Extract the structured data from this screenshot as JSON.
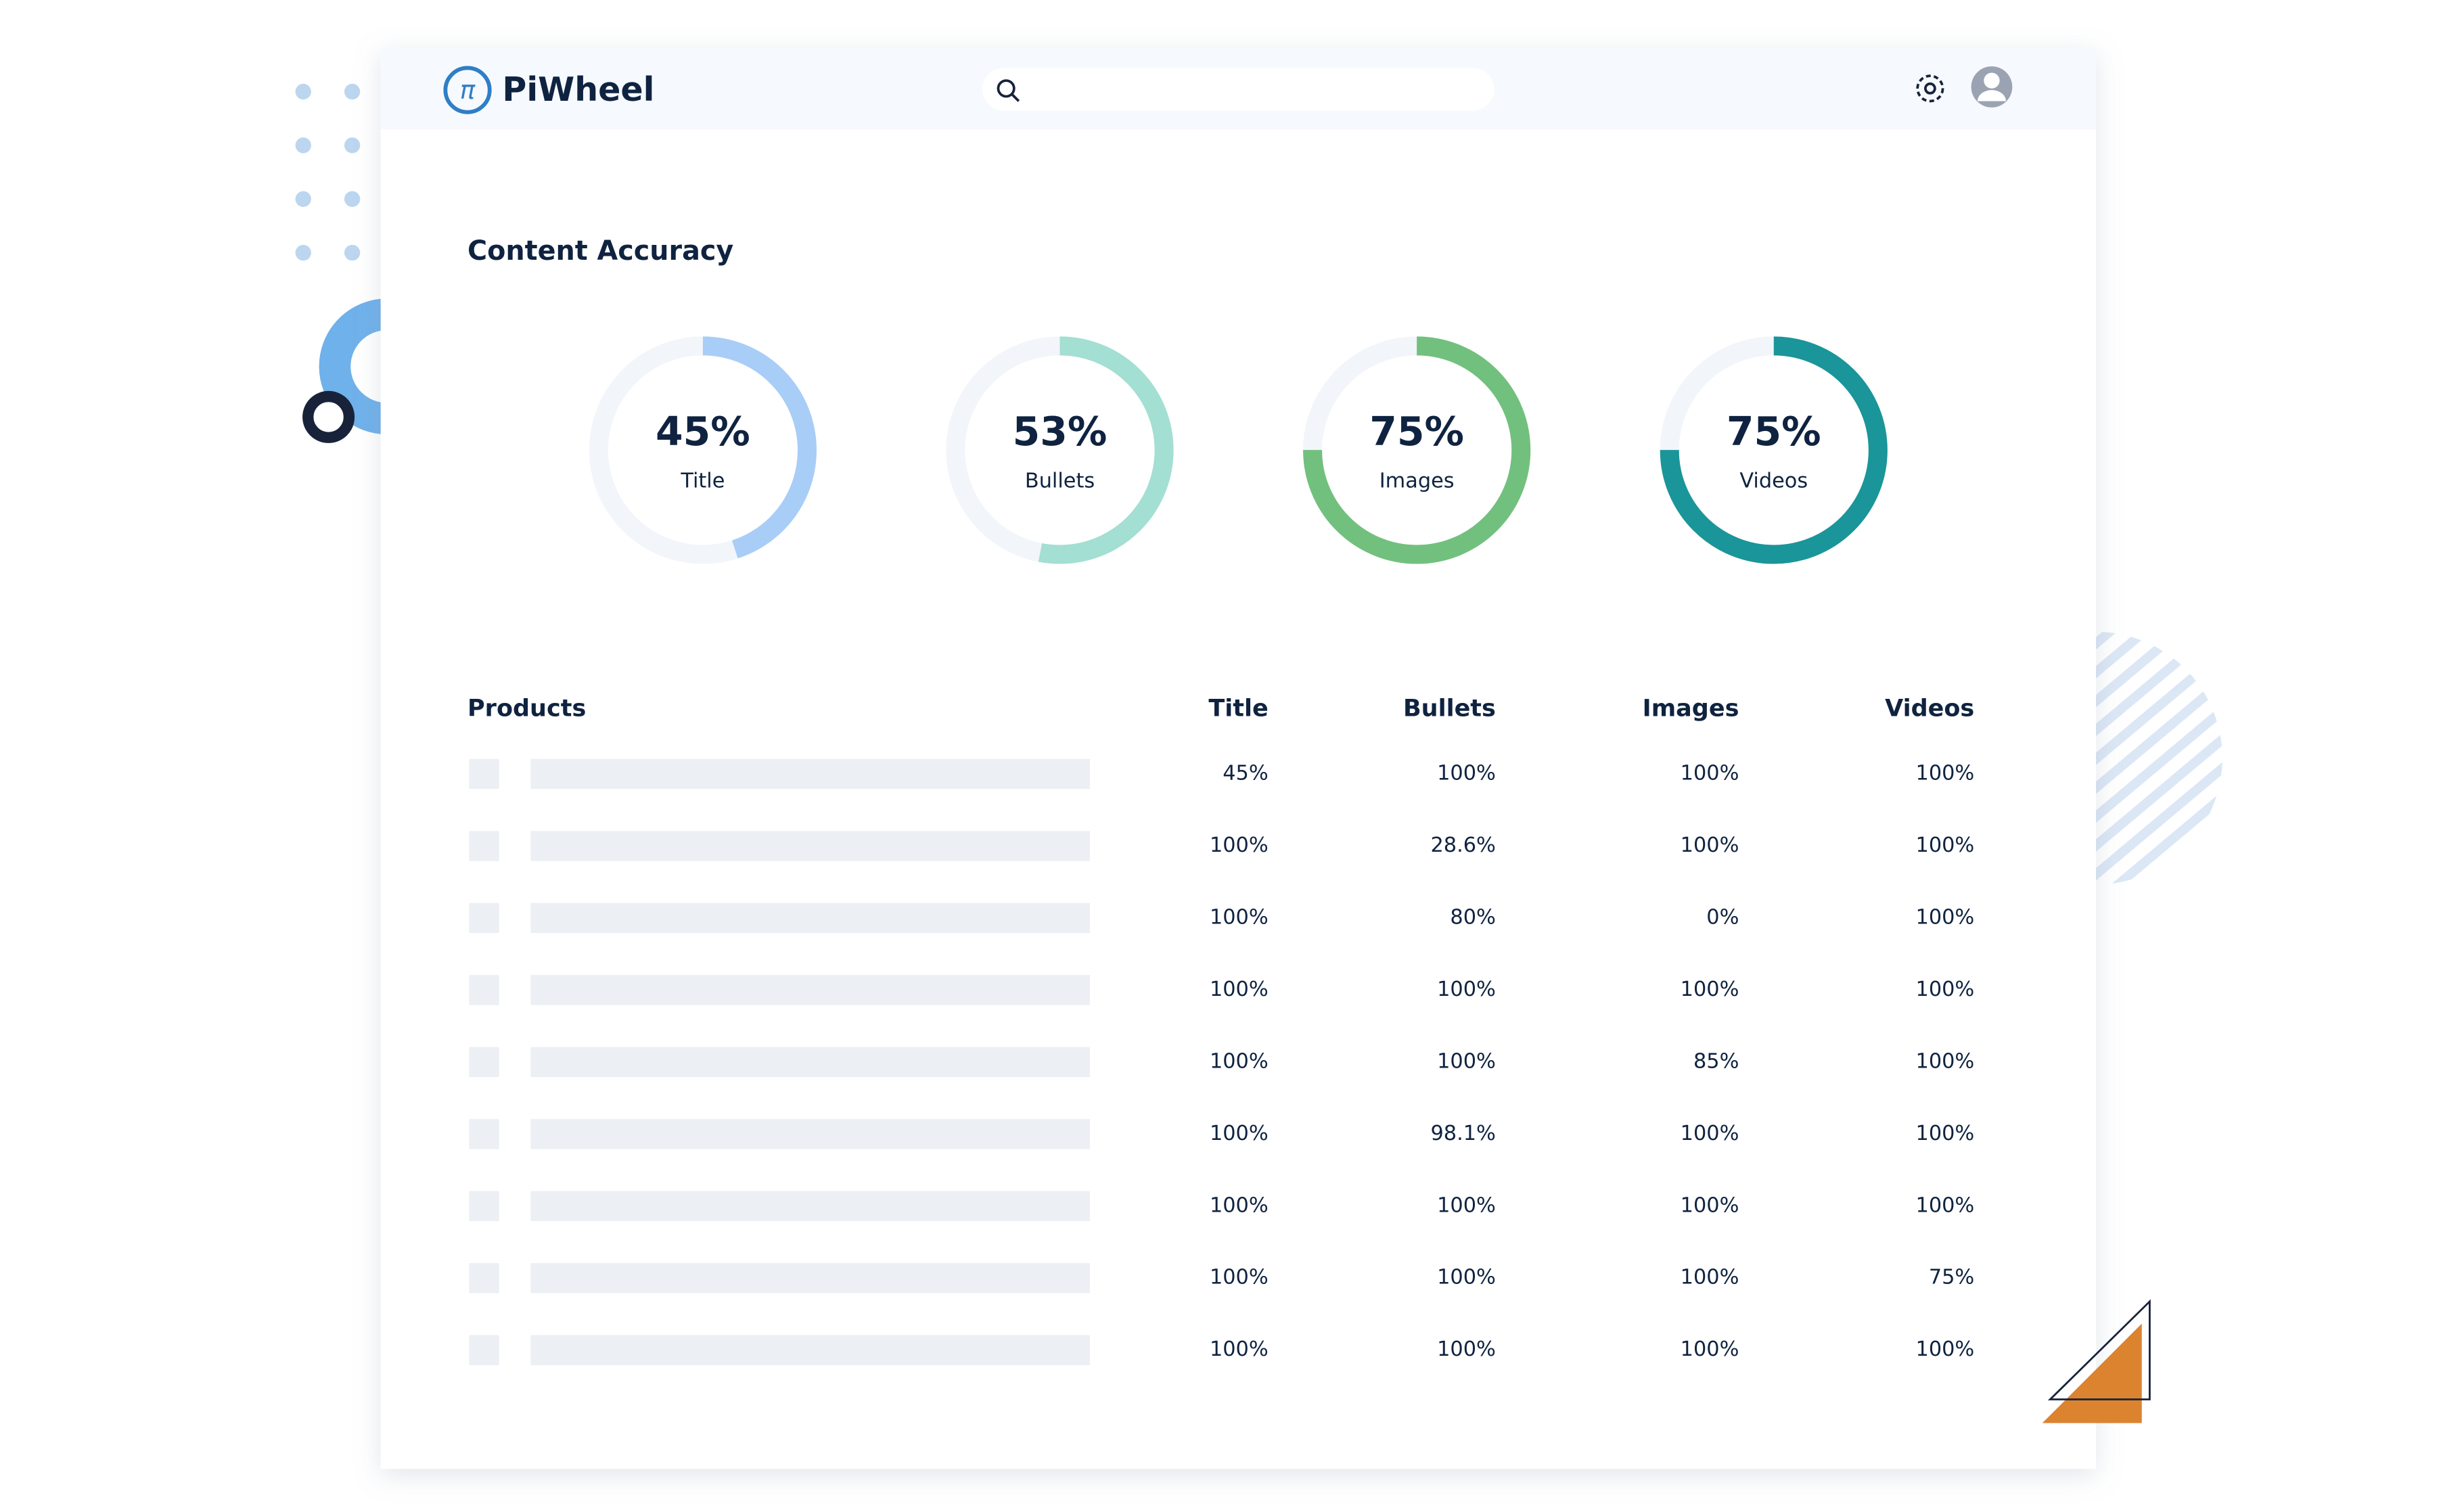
{
  "header": {
    "brand": "PiWheel"
  },
  "section_title": "Content Accuracy",
  "donuts": [
    {
      "value": 45,
      "label": "45%",
      "name": "Title",
      "color": "#a8cdf7"
    },
    {
      "value": 53,
      "label": "53%",
      "name": "Bullets",
      "color": "#a3dfd2"
    },
    {
      "value": 75,
      "label": "75%",
      "name": "Images",
      "color": "#72c07e"
    },
    {
      "value": 75,
      "label": "75%",
      "name": "Videos",
      "color": "#1a9599"
    }
  ],
  "table": {
    "columns": [
      "Products",
      "Title",
      "Bullets",
      "Images",
      "Videos"
    ],
    "rows": [
      [
        "45%",
        "100%",
        "100%",
        "100%"
      ],
      [
        "100%",
        "28.6%",
        "100%",
        "100%"
      ],
      [
        "100%",
        "80%",
        "0%",
        "100%"
      ],
      [
        "100%",
        "100%",
        "100%",
        "100%"
      ],
      [
        "100%",
        "100%",
        "85%",
        "100%"
      ],
      [
        "100%",
        "98.1%",
        "100%",
        "100%"
      ],
      [
        "100%",
        "100%",
        "100%",
        "100%"
      ],
      [
        "100%",
        "100%",
        "100%",
        "75%"
      ],
      [
        "100%",
        "100%",
        "100%",
        "100%"
      ]
    ]
  }
}
